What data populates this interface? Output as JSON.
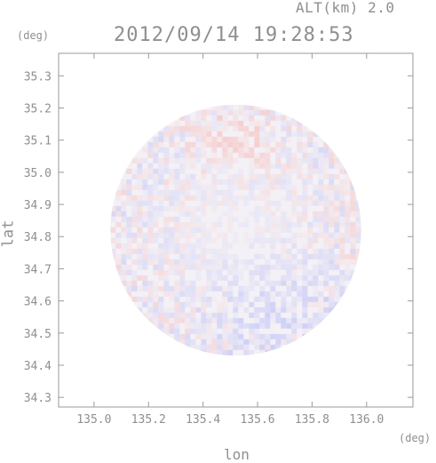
{
  "chart_data": {
    "type": "heatmap",
    "title": "2012/09/14 19:28:53",
    "altitude_label": "ALT(km) 2.0",
    "xlabel": "lon",
    "ylabel": "lat",
    "x_unit": "(deg)",
    "y_unit": "(deg)",
    "xlim": [
      134.87,
      136.17
    ],
    "ylim": [
      34.27,
      35.37
    ],
    "x_ticks": [
      "135.0",
      "135.2",
      "135.4",
      "135.6",
      "135.8",
      "136.0"
    ],
    "x_tick_values": [
      135.0,
      135.2,
      135.4,
      135.6,
      135.8,
      136.0
    ],
    "y_ticks": [
      "34.3",
      "34.4",
      "34.5",
      "34.6",
      "34.7",
      "34.8",
      "34.9",
      "35.0",
      "35.1",
      "35.2",
      "35.3"
    ],
    "y_tick_values": [
      34.3,
      34.4,
      34.5,
      34.6,
      34.7,
      34.8,
      34.9,
      35.0,
      35.1,
      35.2,
      35.3
    ],
    "scan_center": [
      135.52,
      34.82
    ],
    "scan_radius_deg": 0.46,
    "colors": {
      "positive": "#f6c9c9",
      "negative": "#c9cbf6",
      "neutral": "#f4f1f6",
      "axis": "#9a9a9a"
    }
  }
}
